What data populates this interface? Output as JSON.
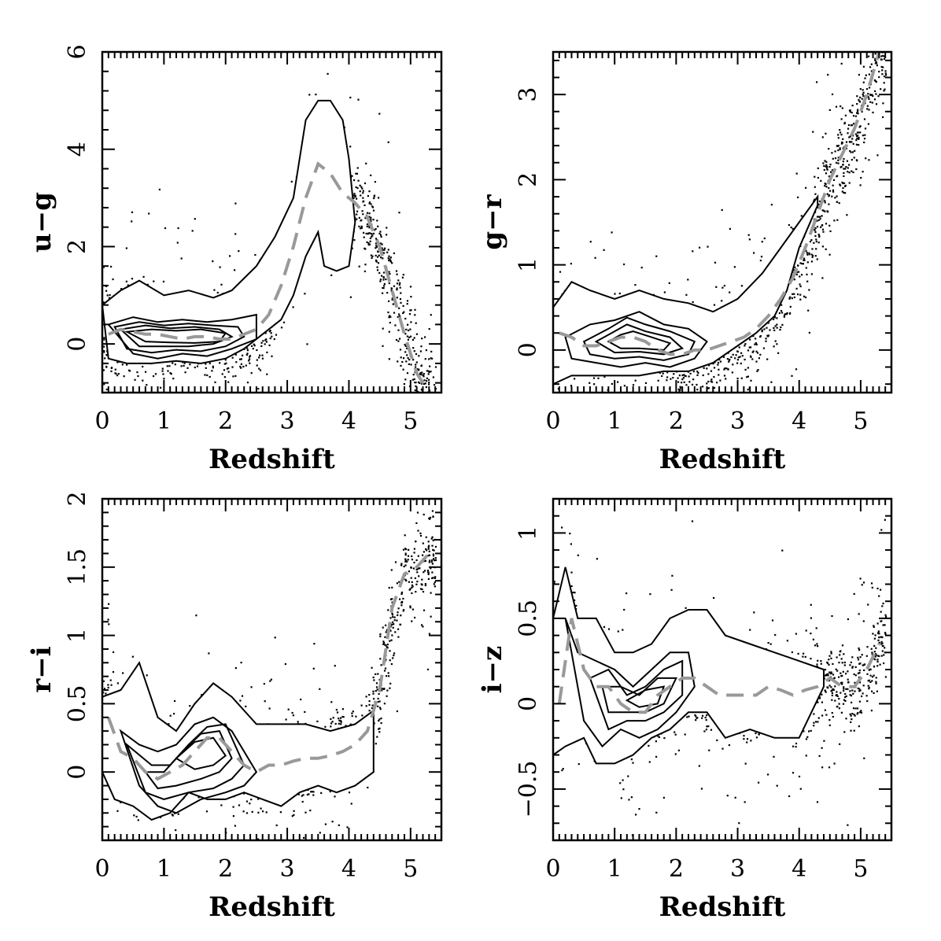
{
  "figure": {
    "panels": [
      {
        "id": "ug",
        "xlabel": "Redshift",
        "ylabel": "u−g",
        "xticks": [
          "0",
          "1",
          "2",
          "3",
          "4",
          "5"
        ],
        "yticks": [
          "0",
          "2",
          "4",
          "6"
        ]
      },
      {
        "id": "gr",
        "xlabel": "Redshift",
        "ylabel": "g−r",
        "xticks": [
          "0",
          "1",
          "2",
          "3",
          "4",
          "5"
        ],
        "yticks": [
          "0",
          "1",
          "2",
          "3"
        ]
      },
      {
        "id": "ri",
        "xlabel": "Redshift",
        "ylabel": "r−i",
        "xticks": [
          "0",
          "1",
          "2",
          "3",
          "4",
          "5"
        ],
        "yticks": [
          "0",
          "0.5",
          "1",
          "1.5",
          "2"
        ]
      },
      {
        "id": "iz",
        "xlabel": "Redshift",
        "ylabel": "i−z",
        "xticks": [
          "0",
          "1",
          "2",
          "3",
          "4",
          "5"
        ],
        "yticks": [
          "−0.5",
          "0",
          "0.5",
          "1"
        ]
      }
    ]
  },
  "chart_data": [
    {
      "type": "scatter",
      "xlabel": "Redshift",
      "ylabel": "u−g",
      "xlim": [
        0,
        5.5
      ],
      "ylim": [
        -1,
        6
      ],
      "xticks": [
        0,
        1,
        2,
        3,
        4,
        5
      ],
      "yticks": [
        0,
        2,
        4,
        6
      ],
      "median_color": "#999999",
      "median_curve": {
        "x": [
          0.1,
          0.3,
          0.5,
          0.7,
          0.9,
          1.1,
          1.3,
          1.5,
          1.7,
          1.9,
          2.1,
          2.3,
          2.5,
          2.7,
          2.9,
          3.1,
          3.3,
          3.5,
          3.7,
          3.9,
          4.1,
          4.3,
          4.5,
          4.7,
          4.9,
          5.1,
          5.3
        ],
        "y": [
          0.2,
          0.3,
          0.25,
          0.2,
          0.2,
          0.15,
          0.1,
          0.15,
          0.15,
          0.1,
          0.1,
          0.2,
          0.3,
          0.6,
          1.2,
          2.0,
          3.0,
          3.7,
          3.5,
          3.1,
          2.9,
          2.6,
          2.0,
          1.1,
          0.2,
          -0.6,
          -1.0
        ]
      },
      "outer_contour": {
        "x": [
          0.0,
          0.3,
          0.6,
          1.0,
          1.4,
          1.8,
          2.1,
          2.5,
          2.8,
          3.1,
          3.3,
          3.5,
          3.7,
          3.9,
          4.0,
          4.1,
          4.0,
          3.8,
          3.6,
          3.5,
          3.3,
          3.1,
          2.9,
          2.6,
          2.3,
          2.0,
          1.6,
          1.2,
          0.8,
          0.4,
          0.1,
          0.0
        ],
        "y": [
          0.8,
          1.1,
          1.3,
          1.0,
          1.1,
          0.95,
          1.1,
          1.6,
          2.2,
          3.0,
          4.6,
          5.0,
          5.0,
          4.6,
          3.8,
          2.5,
          1.6,
          1.5,
          1.6,
          2.3,
          1.8,
          1.0,
          0.5,
          0.2,
          -0.1,
          -0.3,
          -0.4,
          -0.35,
          -0.4,
          -0.4,
          -0.3,
          0.8
        ]
      },
      "inner_contours": [
        {
          "x": [
            0.1,
            0.5,
            0.9,
            1.3,
            1.7,
            2.1,
            2.5,
            2.5,
            2.1,
            1.7,
            1.3,
            0.9,
            0.5,
            0.1
          ],
          "y": [
            0.4,
            0.55,
            0.45,
            0.5,
            0.45,
            0.5,
            0.6,
            0.1,
            -0.1,
            -0.25,
            -0.2,
            -0.3,
            -0.2,
            0.4
          ]
        },
        {
          "x": [
            0.2,
            0.6,
            1.0,
            1.4,
            1.8,
            2.2,
            2.3,
            2.0,
            1.6,
            1.2,
            0.8,
            0.4,
            0.2
          ],
          "y": [
            0.35,
            0.45,
            0.38,
            0.42,
            0.38,
            0.35,
            0.15,
            -0.05,
            -0.15,
            -0.12,
            -0.18,
            -0.1,
            0.35
          ]
        },
        {
          "x": [
            0.3,
            0.7,
            1.1,
            1.5,
            1.9,
            2.1,
            1.8,
            1.4,
            1.0,
            0.6,
            0.3
          ],
          "y": [
            0.3,
            0.38,
            0.32,
            0.35,
            0.3,
            0.15,
            0.0,
            -0.05,
            -0.05,
            -0.05,
            0.3
          ]
        },
        {
          "x": [
            0.4,
            0.8,
            1.2,
            1.6,
            2.0,
            1.9,
            1.5,
            1.1,
            0.7,
            0.4
          ],
          "y": [
            0.25,
            0.3,
            0.27,
            0.3,
            0.22,
            0.05,
            0.02,
            0.03,
            0.05,
            0.25
          ]
        }
      ]
    },
    {
      "type": "scatter",
      "xlabel": "Redshift",
      "ylabel": "g−r",
      "xlim": [
        0,
        5.5
      ],
      "ylim": [
        -0.5,
        3.5
      ],
      "xticks": [
        0,
        1,
        2,
        3,
        4,
        5
      ],
      "yticks": [
        0,
        1,
        2,
        3
      ],
      "median_color": "#999999",
      "median_curve": {
        "x": [
          0.1,
          0.3,
          0.5,
          0.7,
          0.9,
          1.1,
          1.3,
          1.5,
          1.7,
          1.9,
          2.1,
          2.3,
          2.5,
          2.7,
          2.9,
          3.1,
          3.3,
          3.5,
          3.7,
          3.9,
          4.1,
          4.3,
          4.5,
          4.7,
          4.9,
          5.1,
          5.3
        ],
        "y": [
          0.2,
          0.15,
          0.05,
          0.05,
          0.1,
          0.15,
          0.15,
          0.1,
          0.0,
          -0.05,
          -0.05,
          0.0,
          0.0,
          0.05,
          0.1,
          0.15,
          0.25,
          0.4,
          0.6,
          0.85,
          1.2,
          1.6,
          2.0,
          2.3,
          2.6,
          3.0,
          3.5
        ]
      },
      "outer_contour": {
        "x": [
          0.0,
          0.3,
          0.6,
          1.0,
          1.4,
          1.8,
          2.2,
          2.6,
          3.0,
          3.4,
          3.7,
          4.0,
          4.3,
          4.3,
          4.0,
          3.8,
          3.6,
          3.3,
          3.0,
          2.6,
          2.2,
          1.8,
          1.4,
          1.0,
          0.6,
          0.3,
          0.0,
          0.0
        ],
        "y": [
          0.5,
          0.8,
          0.7,
          0.6,
          0.7,
          0.6,
          0.55,
          0.45,
          0.6,
          0.9,
          1.2,
          1.5,
          1.8,
          1.7,
          1.2,
          0.7,
          0.4,
          0.2,
          0.05,
          -0.15,
          -0.25,
          -0.25,
          -0.3,
          -0.3,
          -0.3,
          -0.3,
          -0.4,
          0.5
        ]
      },
      "inner_contours": [
        {
          "x": [
            0.2,
            0.6,
            1.0,
            1.4,
            1.8,
            2.2,
            2.5,
            2.3,
            1.9,
            1.5,
            1.1,
            0.7,
            0.3,
            0.2
          ],
          "y": [
            0.15,
            0.3,
            0.35,
            0.45,
            0.3,
            0.25,
            0.1,
            -0.1,
            -0.2,
            -0.15,
            -0.2,
            -0.15,
            -0.1,
            0.15
          ]
        },
        {
          "x": [
            0.5,
            0.9,
            1.2,
            1.5,
            1.9,
            2.3,
            2.2,
            1.8,
            1.4,
            1.0,
            0.6,
            0.5
          ],
          "y": [
            0.1,
            0.25,
            0.38,
            0.3,
            0.22,
            0.1,
            -0.05,
            -0.12,
            -0.08,
            -0.1,
            -0.05,
            0.1
          ]
        },
        {
          "x": [
            0.7,
            1.0,
            1.2,
            1.5,
            1.9,
            2.1,
            1.8,
            1.4,
            1.0,
            0.7
          ],
          "y": [
            0.1,
            0.22,
            0.3,
            0.22,
            0.15,
            0.02,
            -0.05,
            -0.02,
            -0.03,
            0.1
          ]
        },
        {
          "x": [
            0.9,
            1.1,
            1.3,
            1.6,
            1.9,
            1.8,
            1.4,
            1.1,
            0.9
          ],
          "y": [
            0.1,
            0.18,
            0.22,
            0.15,
            0.08,
            0.0,
            0.02,
            0.02,
            0.1
          ]
        }
      ]
    },
    {
      "type": "scatter",
      "xlabel": "Redshift",
      "ylabel": "r−i",
      "xlim": [
        0,
        5.5
      ],
      "ylim": [
        -0.5,
        2
      ],
      "xticks": [
        0,
        1,
        2,
        3,
        4,
        5
      ],
      "yticks": [
        0,
        0.5,
        1,
        1.5,
        2
      ],
      "median_color": "#999999",
      "median_curve": {
        "x": [
          0.1,
          0.3,
          0.5,
          0.7,
          0.9,
          1.1,
          1.3,
          1.5,
          1.7,
          1.9,
          2.1,
          2.3,
          2.5,
          2.7,
          2.9,
          3.1,
          3.3,
          3.5,
          3.7,
          3.9,
          4.1,
          4.3,
          4.5,
          4.7,
          4.9,
          5.1,
          5.3
        ],
        "y": [
          0.4,
          0.15,
          0.1,
          0.0,
          -0.05,
          0.0,
          0.05,
          0.15,
          0.25,
          0.25,
          0.15,
          0.05,
          0.0,
          0.05,
          0.05,
          0.08,
          0.1,
          0.1,
          0.12,
          0.15,
          0.2,
          0.3,
          0.6,
          1.2,
          1.45,
          1.5,
          1.6
        ]
      },
      "outer_contour": {
        "x": [
          0.0,
          0.3,
          0.6,
          0.9,
          1.2,
          1.5,
          1.8,
          2.1,
          2.5,
          2.9,
          3.3,
          3.7,
          4.1,
          4.4,
          4.4,
          4.1,
          3.8,
          3.5,
          3.2,
          2.9,
          2.6,
          2.3,
          2.0,
          1.7,
          1.4,
          1.1,
          0.8,
          0.5,
          0.2,
          0.0,
          0.0
        ],
        "y": [
          0.55,
          0.6,
          0.8,
          0.4,
          0.3,
          0.5,
          0.65,
          0.55,
          0.35,
          0.35,
          0.35,
          0.3,
          0.35,
          0.45,
          0.0,
          -0.1,
          -0.15,
          -0.1,
          -0.15,
          -0.25,
          -0.2,
          -0.15,
          -0.2,
          -0.2,
          -0.15,
          -0.3,
          -0.35,
          -0.25,
          -0.2,
          0.0,
          0.55
        ]
      },
      "inner_contours": [
        {
          "x": [
            0.3,
            0.6,
            0.9,
            1.2,
            1.5,
            1.8,
            2.1,
            2.5,
            2.3,
            2.0,
            1.6,
            1.2,
            0.9,
            0.6,
            0.3
          ],
          "y": [
            0.3,
            0.2,
            0.15,
            0.2,
            0.35,
            0.4,
            0.3,
            0.0,
            -0.1,
            -0.15,
            -0.2,
            -0.3,
            -0.25,
            -0.1,
            0.3
          ]
        },
        {
          "x": [
            0.4,
            0.8,
            1.1,
            1.4,
            1.7,
            2.0,
            2.3,
            2.1,
            1.8,
            1.4,
            1.0,
            0.7,
            0.4
          ],
          "y": [
            0.2,
            0.05,
            0.05,
            0.2,
            0.33,
            0.35,
            0.05,
            -0.05,
            -0.12,
            -0.15,
            -0.2,
            -0.15,
            0.2
          ]
        },
        {
          "x": [
            0.7,
            1.0,
            1.3,
            1.6,
            1.9,
            2.1,
            1.9,
            1.6,
            1.2,
            0.9,
            0.7
          ],
          "y": [
            0.0,
            0.0,
            0.15,
            0.28,
            0.3,
            0.1,
            0.0,
            -0.05,
            -0.1,
            -0.12,
            0.0
          ]
        },
        {
          "x": [
            1.2,
            1.5,
            1.8,
            2.0,
            1.8,
            1.5,
            1.2
          ],
          "y": [
            0.1,
            0.22,
            0.25,
            0.12,
            0.05,
            0.02,
            0.1
          ]
        }
      ]
    },
    {
      "type": "scatter",
      "xlabel": "Redshift",
      "ylabel": "i−z",
      "xlim": [
        0,
        5.5
      ],
      "ylim": [
        -0.8,
        1.2
      ],
      "xticks": [
        0,
        1,
        2,
        3,
        4,
        5
      ],
      "yticks": [
        -0.5,
        0,
        0.5,
        1
      ],
      "median_color": "#999999",
      "median_curve": {
        "x": [
          0.1,
          0.3,
          0.5,
          0.7,
          0.9,
          1.1,
          1.3,
          1.5,
          1.7,
          1.9,
          2.1,
          2.3,
          2.5,
          2.7,
          2.9,
          3.1,
          3.3,
          3.5,
          3.7,
          3.9,
          4.1,
          4.3,
          4.5,
          4.7,
          4.9,
          5.1,
          5.3
        ],
        "y": [
          0.0,
          0.5,
          0.2,
          0.1,
          0.1,
          0.0,
          -0.05,
          -0.05,
          0.05,
          0.1,
          0.15,
          0.15,
          0.1,
          0.05,
          0.05,
          0.05,
          0.05,
          0.1,
          0.08,
          0.05,
          0.08,
          0.1,
          0.15,
          0.1,
          0.1,
          0.2,
          0.35
        ]
      },
      "outer_contour": {
        "x": [
          0.0,
          0.2,
          0.4,
          0.7,
          1.0,
          1.3,
          1.6,
          1.9,
          2.2,
          2.5,
          2.8,
          3.2,
          3.6,
          4.0,
          4.4,
          4.4,
          4.0,
          3.6,
          3.2,
          2.8,
          2.5,
          2.2,
          1.9,
          1.6,
          1.3,
          1.0,
          0.7,
          0.5,
          0.2,
          0.0,
          0.0
        ],
        "y": [
          0.5,
          0.8,
          0.5,
          0.5,
          0.3,
          0.3,
          0.35,
          0.5,
          0.55,
          0.55,
          0.4,
          0.35,
          0.3,
          0.25,
          0.2,
          0.1,
          -0.2,
          -0.2,
          -0.15,
          -0.2,
          -0.05,
          -0.05,
          -0.15,
          -0.2,
          -0.3,
          -0.35,
          -0.35,
          -0.2,
          -0.25,
          -0.3,
          0.5
        ]
      },
      "inner_contours": [
        {
          "x": [
            0.2,
            0.4,
            0.7,
            1.0,
            1.3,
            1.6,
            1.9,
            2.2,
            2.3,
            2.0,
            1.7,
            1.4,
            1.1,
            0.8,
            0.5,
            0.2
          ],
          "y": [
            0.5,
            0.3,
            0.25,
            0.2,
            0.1,
            0.2,
            0.3,
            0.3,
            0.1,
            -0.05,
            -0.15,
            -0.2,
            -0.15,
            -0.25,
            -0.1,
            0.5
          ]
        },
        {
          "x": [
            0.6,
            0.9,
            1.2,
            1.5,
            1.8,
            2.1,
            2.1,
            1.8,
            1.5,
            1.2,
            0.9,
            0.6
          ],
          "y": [
            0.15,
            0.2,
            0.05,
            0.1,
            0.2,
            0.25,
            0.05,
            -0.05,
            -0.1,
            -0.1,
            -0.15,
            0.15
          ]
        },
        {
          "x": [
            0.8,
            1.1,
            1.4,
            1.7,
            2.0,
            1.8,
            1.5,
            1.2,
            0.9,
            0.8
          ],
          "y": [
            0.1,
            0.1,
            0.05,
            0.15,
            0.15,
            0.0,
            -0.05,
            -0.05,
            -0.05,
            0.1
          ]
        },
        {
          "x": [
            1.2,
            1.5,
            1.8,
            1.7,
            1.4,
            1.2
          ],
          "y": [
            0.02,
            0.08,
            0.1,
            0.0,
            -0.02,
            0.02
          ]
        }
      ]
    }
  ]
}
